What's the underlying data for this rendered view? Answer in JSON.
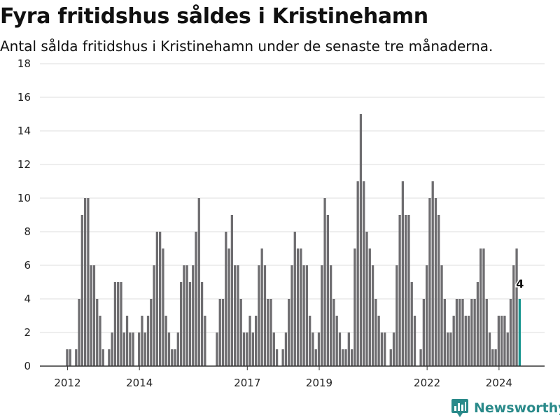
{
  "title": "Fyra fritidshus såldes i Kristinehamn",
  "subtitle": "Antal sålda fritidshus i Kristinehamn under de senaste tre månaderna.",
  "brand": {
    "name": "Newsworthy",
    "color": "#2a8a8a",
    "icon": "newsworthy-logo-icon"
  },
  "colors": {
    "bar": "#6e6d70",
    "highlight": "#17958f",
    "grid": "#dddddd",
    "axis": "#333333"
  },
  "chart_data": {
    "type": "bar",
    "title": "Fyra fritidshus såldes i Kristinehamn",
    "subtitle": "Antal sålda fritidshus i Kristinehamn under de senaste tre månaderna.",
    "xlabel": "",
    "ylabel": "",
    "ylim": [
      0,
      18
    ],
    "yticks": [
      0,
      2,
      4,
      6,
      8,
      10,
      12,
      14,
      16,
      18
    ],
    "xticks": [
      "2012",
      "2014",
      "2017",
      "2019",
      "2022",
      "2024"
    ],
    "grid": true,
    "start": "2011-12",
    "frequency": "monthly",
    "values": [
      0,
      1,
      1,
      0,
      1,
      4,
      9,
      10,
      10,
      6,
      6,
      4,
      3,
      1,
      0,
      1,
      2,
      5,
      5,
      5,
      2,
      3,
      2,
      2,
      0,
      2,
      3,
      2,
      3,
      4,
      6,
      8,
      8,
      7,
      3,
      2,
      1,
      1,
      2,
      5,
      6,
      6,
      5,
      6,
      8,
      10,
      5,
      3,
      0,
      0,
      0,
      2,
      4,
      4,
      8,
      7,
      9,
      6,
      6,
      4,
      2,
      2,
      3,
      2,
      3,
      6,
      7,
      6,
      4,
      4,
      2,
      1,
      0,
      1,
      2,
      4,
      6,
      8,
      7,
      7,
      6,
      6,
      3,
      2,
      1,
      2,
      6,
      10,
      9,
      6,
      4,
      3,
      2,
      1,
      1,
      2,
      1,
      7,
      11,
      15,
      11,
      8,
      7,
      6,
      4,
      3,
      2,
      2,
      0,
      1,
      2,
      6,
      9,
      11,
      9,
      9,
      5,
      3,
      0,
      1,
      4,
      6,
      10,
      11,
      10,
      9,
      6,
      4,
      2,
      2,
      3,
      4,
      4,
      4,
      3,
      3,
      4,
      4,
      5,
      7,
      7,
      4,
      2,
      1,
      1,
      3,
      3,
      3,
      2,
      4,
      6,
      7,
      4
    ],
    "annotations": [
      {
        "index": 152,
        "label": "4"
      }
    ]
  }
}
